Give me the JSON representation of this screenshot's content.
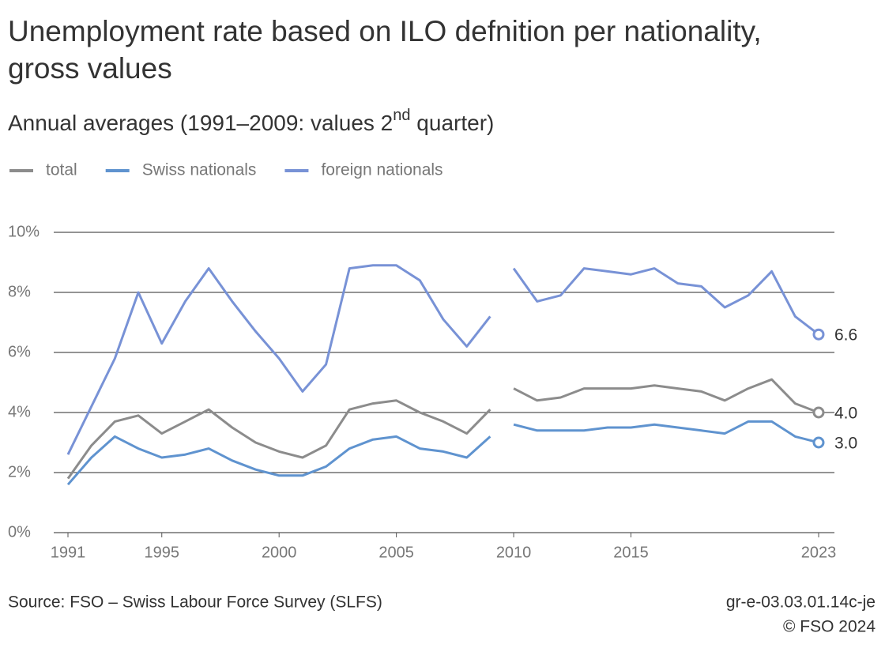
{
  "chart_data": {
    "type": "line",
    "title": [
      "Unemployment rate based on ILO defnition per nationality,",
      "gross values"
    ],
    "subtitle": [
      "Annual averages (1991–2009: values 2",
      "nd",
      " quarter)"
    ],
    "x": [
      1991,
      1992,
      1993,
      1994,
      1995,
      1996,
      1997,
      1998,
      1999,
      2000,
      2001,
      2002,
      2003,
      2004,
      2005,
      2006,
      2007,
      2008,
      2009,
      2010,
      2011,
      2012,
      2013,
      2014,
      2015,
      2016,
      2017,
      2018,
      2019,
      2020,
      2021,
      2022,
      2023
    ],
    "break_after": 2009,
    "xlim": [
      1991,
      2023
    ],
    "xticks": [
      1991,
      1995,
      2000,
      2005,
      2010,
      2015,
      2023
    ],
    "ylim": [
      0,
      10
    ],
    "yticks": [
      {
        "value": 0,
        "label": "0%"
      },
      {
        "value": 2,
        "label": "2%"
      },
      {
        "value": 4,
        "label": "4%"
      },
      {
        "value": 6,
        "label": "6%"
      },
      {
        "value": 8,
        "label": "8%"
      },
      {
        "value": 10,
        "label": "10%"
      }
    ],
    "grid": true,
    "series": [
      {
        "name": "total",
        "color": "#8c8c8c",
        "values": [
          1.8,
          2.9,
          3.7,
          3.9,
          3.3,
          3.7,
          4.1,
          3.5,
          3.0,
          2.7,
          2.5,
          2.9,
          4.1,
          4.3,
          4.4,
          4.0,
          3.7,
          3.3,
          4.1,
          4.8,
          4.4,
          4.5,
          4.8,
          4.8,
          4.8,
          4.9,
          4.8,
          4.7,
          4.4,
          4.8,
          5.1,
          4.3,
          4.0
        ],
        "value_labels": [
          null,
          null,
          null,
          null,
          null,
          null,
          null,
          null,
          null,
          null,
          null,
          null,
          null,
          null,
          null,
          null,
          null,
          null,
          null,
          null,
          null,
          null,
          null,
          null,
          null,
          null,
          null,
          null,
          null,
          null,
          null,
          null,
          "4.0"
        ]
      },
      {
        "name": "Swiss nationals",
        "color": "#5f93cf",
        "values": [
          1.6,
          2.5,
          3.2,
          2.8,
          2.5,
          2.6,
          2.8,
          2.4,
          2.1,
          1.9,
          1.9,
          2.2,
          2.8,
          3.1,
          3.2,
          2.8,
          2.7,
          2.5,
          3.2,
          3.6,
          3.4,
          3.4,
          3.4,
          3.5,
          3.5,
          3.6,
          3.5,
          3.4,
          3.3,
          3.7,
          3.7,
          3.2,
          3.0
        ],
        "value_labels": [
          null,
          null,
          null,
          null,
          null,
          null,
          null,
          null,
          null,
          null,
          null,
          null,
          null,
          null,
          null,
          null,
          null,
          null,
          null,
          null,
          null,
          null,
          null,
          null,
          null,
          null,
          null,
          null,
          null,
          null,
          null,
          null,
          "3.0"
        ]
      },
      {
        "name": "foreign nationals",
        "color": "#7892d6",
        "values": [
          2.6,
          4.2,
          5.8,
          8.0,
          6.3,
          7.7,
          8.8,
          7.7,
          6.7,
          5.8,
          4.7,
          5.6,
          8.8,
          8.9,
          8.9,
          8.4,
          7.1,
          6.2,
          7.2,
          8.8,
          7.7,
          7.9,
          8.8,
          8.7,
          8.6,
          8.8,
          8.3,
          8.2,
          7.5,
          7.9,
          8.7,
          7.2,
          6.6
        ],
        "value_labels": [
          null,
          null,
          null,
          null,
          null,
          null,
          null,
          null,
          null,
          null,
          null,
          null,
          null,
          null,
          null,
          null,
          null,
          null,
          null,
          null,
          null,
          null,
          null,
          null,
          null,
          null,
          null,
          null,
          null,
          null,
          null,
          null,
          "6.6"
        ]
      }
    ],
    "source": "Source: FSO – Swiss Labour Force Survey (SLFS)",
    "code": "gr-e-03.03.01.14c-je",
    "copyright": "© FSO 2024"
  }
}
